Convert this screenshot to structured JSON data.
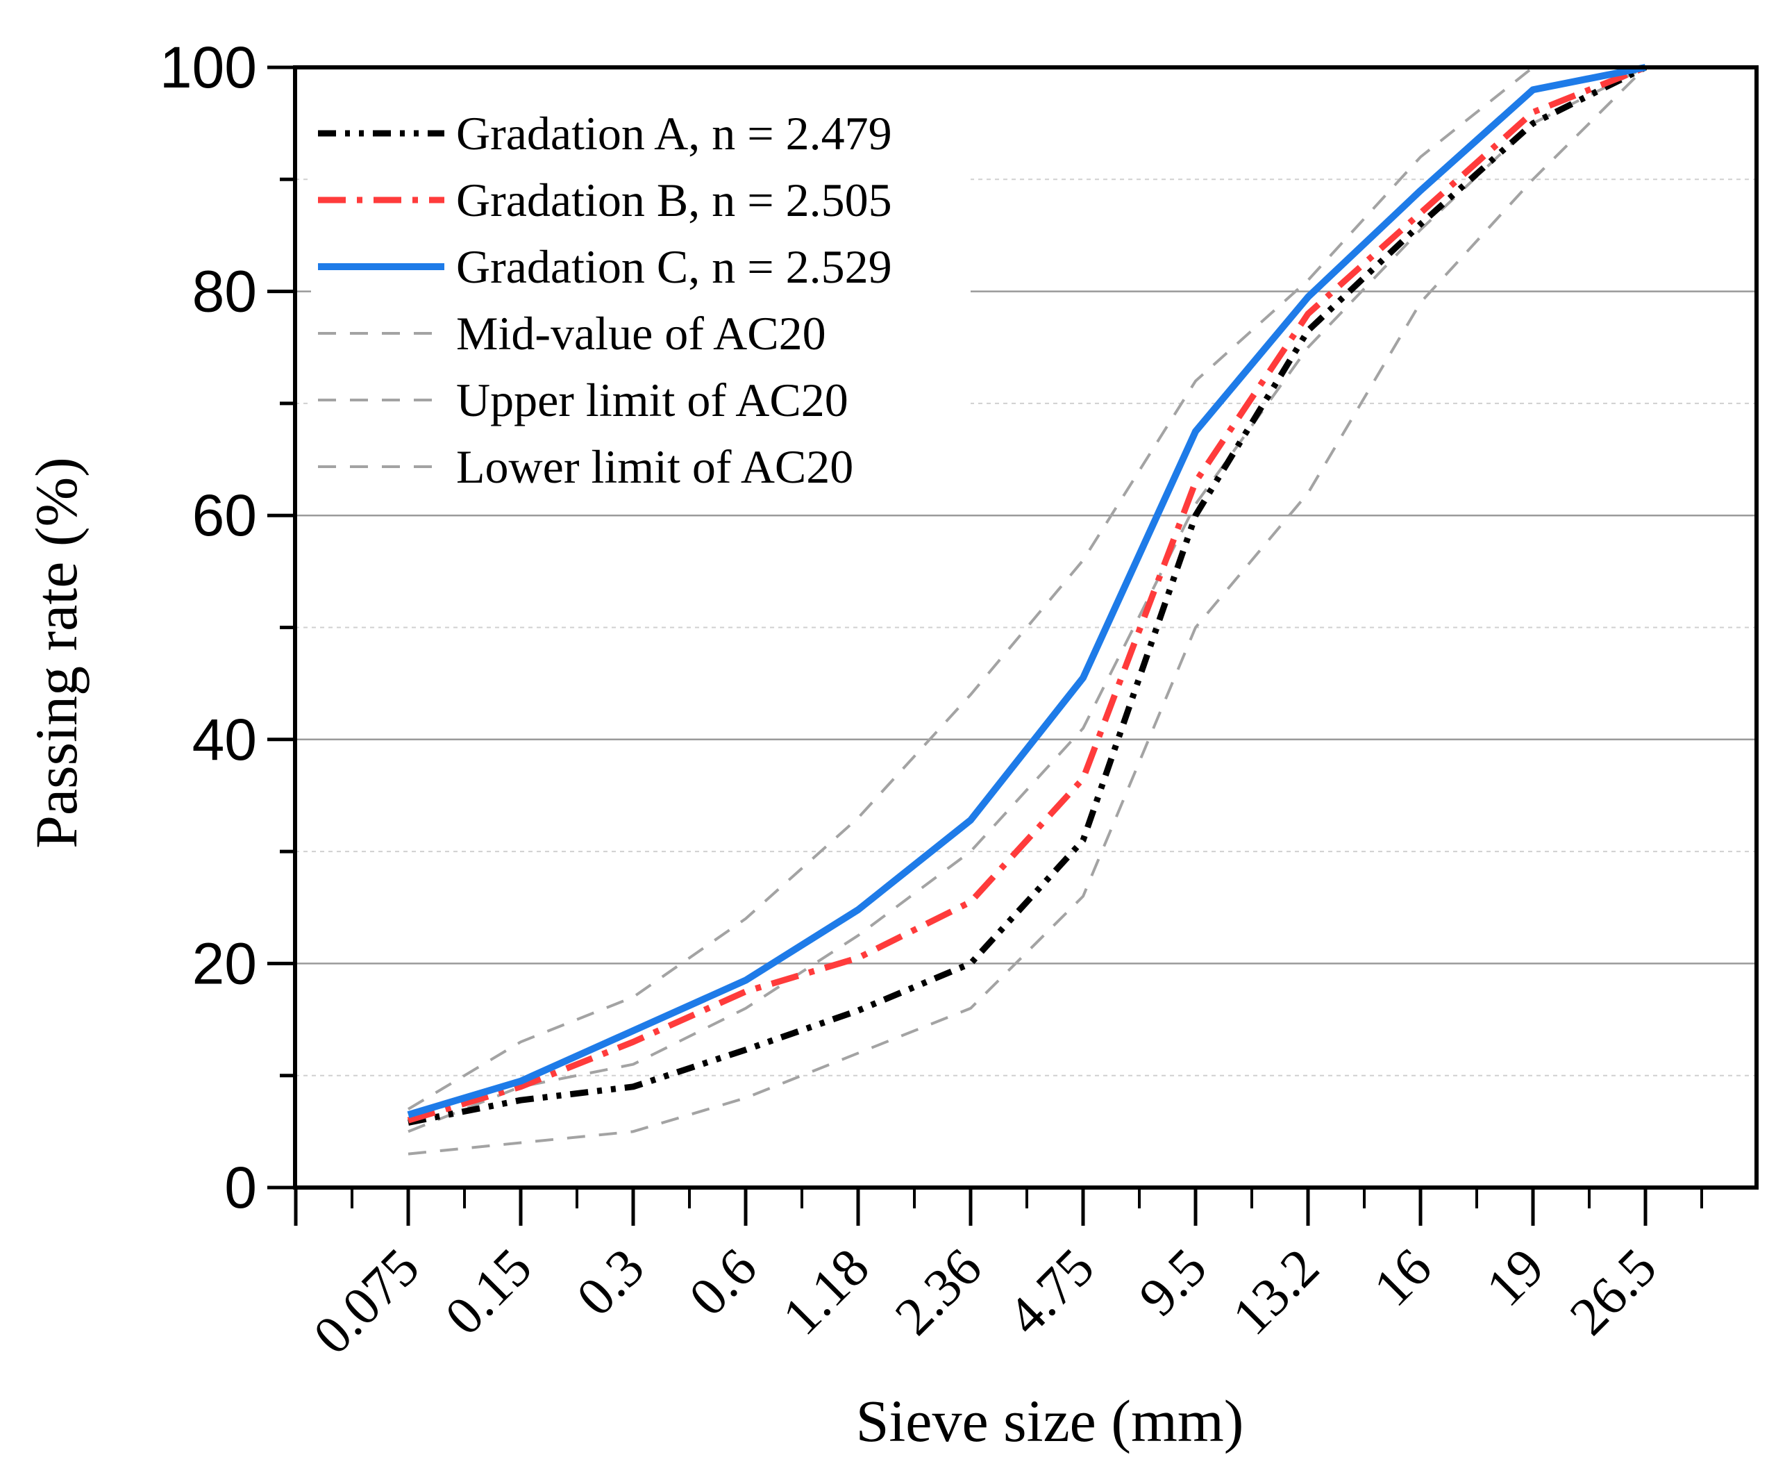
{
  "chart_data": {
    "type": "line",
    "title": "",
    "xlabel": "Sieve size (mm)",
    "ylabel": "Passing rate (%)",
    "categories": [
      "0.075",
      "0.15",
      "0.3",
      "0.6",
      "1.18",
      "2.36",
      "4.75",
      "9.5",
      "13.2",
      "16",
      "19",
      "26.5"
    ],
    "ylim": [
      0,
      100
    ],
    "yticks": [
      "0",
      "20",
      "40",
      "60",
      "80",
      "100"
    ],
    "grid": true,
    "legend_position": "top-left",
    "series": [
      {
        "name": "Gradation A, n = 2.479",
        "color": "#000000",
        "style": "dash-dot-dot",
        "values": [
          5.8,
          7.8,
          9.0,
          12.3,
          15.8,
          20.0,
          31.0,
          60.0,
          76.5,
          86.0,
          95.0,
          100
        ]
      },
      {
        "name": "Gradation B, n = 2.505",
        "color": "#ff3b3b",
        "style": "dash-dot",
        "values": [
          6.0,
          9.0,
          13.0,
          17.5,
          20.5,
          25.5,
          36.5,
          63.0,
          78.0,
          87.0,
          96.0,
          100
        ]
      },
      {
        "name": "Gradation C, n = 2.529",
        "color": "#1e7be8",
        "style": "solid",
        "values": [
          6.5,
          9.5,
          14.0,
          18.5,
          24.8,
          32.8,
          45.5,
          67.5,
          79.5,
          89.0,
          98.0,
          100
        ]
      },
      {
        "name": "Mid-value of AC20",
        "color": "#a3a3a3",
        "style": "dashed",
        "values": [
          5.0,
          9.0,
          11.0,
          16.0,
          22.5,
          30.0,
          41.0,
          61.0,
          75.0,
          85.5,
          95.0,
          100
        ]
      },
      {
        "name": "Upper limit of AC20",
        "color": "#a3a3a3",
        "style": "dashed",
        "values": [
          7.0,
          13.0,
          17.0,
          24.0,
          33.0,
          44.0,
          56.0,
          72.0,
          81.0,
          92.0,
          100.0,
          100
        ]
      },
      {
        "name": "Lower limit of AC20",
        "color": "#a3a3a3",
        "style": "dashed",
        "values": [
          3.0,
          4.0,
          5.0,
          8.0,
          12.0,
          16.0,
          26.0,
          50.0,
          62.0,
          79.0,
          90.0,
          100
        ]
      }
    ]
  }
}
